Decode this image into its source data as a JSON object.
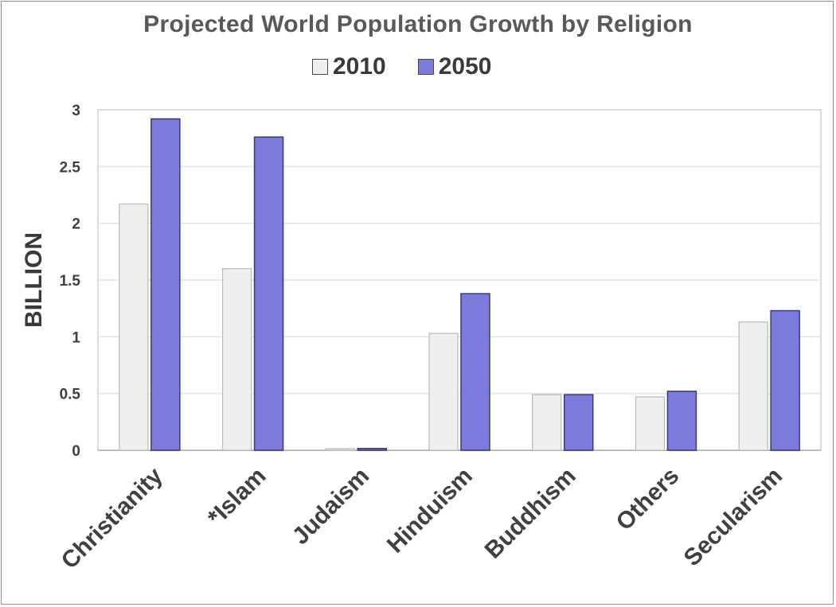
{
  "chart_data": {
    "type": "bar",
    "title": "Projected World Population Growth by Religion",
    "xlabel": "",
    "ylabel": "BILLION",
    "categories": [
      "Christianity",
      "*Islam",
      "Judaism",
      "Hinduism",
      "Buddhism",
      "Others",
      "Secularism"
    ],
    "series": [
      {
        "name": "2010",
        "color": "#efefef",
        "values": [
          2.17,
          1.6,
          0.014,
          1.03,
          0.49,
          0.47,
          1.13
        ]
      },
      {
        "name": "2050",
        "color": "#7b7bdb",
        "values": [
          2.92,
          2.76,
          0.016,
          1.38,
          0.49,
          0.52,
          1.23
        ]
      }
    ],
    "ylim": [
      0,
      3
    ],
    "yticks": [
      "0",
      "0.5",
      "1",
      "1.5",
      "2",
      "2.5",
      "3"
    ],
    "grid": true,
    "legend_position": "top-center"
  }
}
